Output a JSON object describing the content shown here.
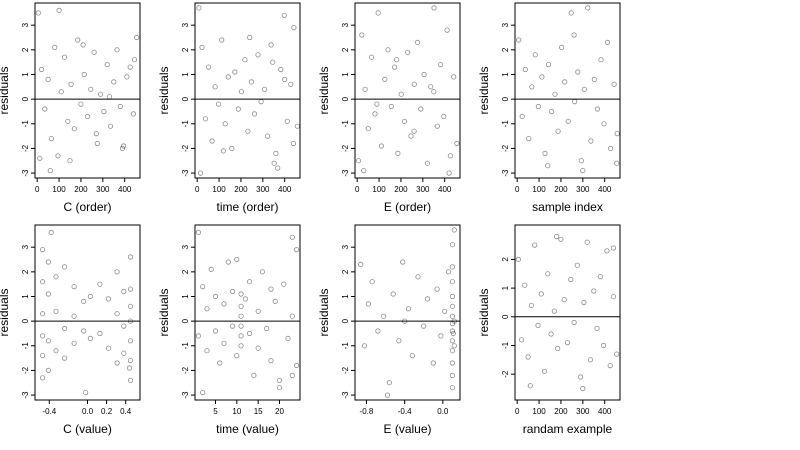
{
  "chart_data": [
    {
      "type": "scatter",
      "xlabel": "C (order)",
      "ylabel": "residuals",
      "xlim": [
        -10,
        470
      ],
      "ylim": [
        -3.2,
        3.9
      ],
      "xticks": [
        0,
        100,
        200,
        300,
        400
      ],
      "xtick_labels": [
        "0",
        "100",
        "200",
        "300",
        "400"
      ],
      "yticks": [
        -3,
        -2,
        -1,
        0,
        1,
        2,
        3
      ],
      "ytick_labels": [
        "-3",
        "-2",
        "-1",
        "0",
        "1",
        "2",
        "3"
      ],
      "reference_line_y": 0,
      "x": [
        5,
        20,
        35,
        50,
        65,
        80,
        95,
        110,
        125,
        140,
        155,
        170,
        185,
        200,
        215,
        230,
        245,
        260,
        275,
        290,
        305,
        320,
        335,
        350,
        365,
        380,
        395,
        410,
        425,
        440,
        455,
        12,
        60,
        100,
        150,
        210,
        270,
        330,
        390,
        445
      ],
      "y": [
        3.5,
        1.2,
        -0.4,
        0.8,
        -1.6,
        2.1,
        -2.3,
        0.3,
        1.7,
        -0.9,
        0.6,
        -1.2,
        2.4,
        -0.2,
        1.0,
        -0.7,
        0.4,
        1.9,
        -1.8,
        0.2,
        -0.5,
        1.4,
        -1.1,
        0.7,
        2.0,
        -0.3,
        -1.9,
        0.9,
        1.3,
        -0.6,
        2.5,
        -2.4,
        -2.9,
        3.6,
        -2.5,
        2.2,
        -1.4,
        0.1,
        -2.0,
        1.6
      ]
    },
    {
      "type": "scatter",
      "xlabel": "time (order)",
      "ylabel": "residuals",
      "xlim": [
        -10,
        470
      ],
      "ylim": [
        -3.2,
        3.9
      ],
      "xticks": [
        0,
        100,
        200,
        300,
        400
      ],
      "xtick_labels": [
        "0",
        "100",
        "200",
        "300",
        "400"
      ],
      "yticks": [
        -3,
        -2,
        -1,
        0,
        1,
        2,
        3
      ],
      "ytick_labels": [
        "-3",
        "-2",
        "-1",
        "0",
        "1",
        "2",
        "3"
      ],
      "reference_line_y": 0,
      "x": [
        8,
        22,
        38,
        52,
        68,
        82,
        98,
        112,
        128,
        142,
        158,
        172,
        188,
        202,
        218,
        232,
        248,
        262,
        278,
        292,
        308,
        322,
        338,
        352,
        368,
        382,
        398,
        412,
        428,
        442,
        458,
        15,
        120,
        240,
        345,
        360,
        400,
        440
      ],
      "y": [
        3.7,
        2.1,
        -0.8,
        1.3,
        -1.7,
        0.5,
        -0.2,
        2.4,
        -1.0,
        0.9,
        -2.0,
        1.1,
        -0.4,
        0.3,
        1.6,
        -1.3,
        0.7,
        -0.6,
        1.8,
        -0.1,
        0.4,
        -1.5,
        2.2,
        -2.6,
        -2.8,
        1.2,
        3.4,
        -0.9,
        0.6,
        2.9,
        -1.1,
        -3.0,
        -2.1,
        2.5,
        1.5,
        -2.2,
        0.8,
        -1.8
      ]
    },
    {
      "type": "scatter",
      "xlabel": "E (order)",
      "ylabel": "residuals",
      "xlim": [
        -10,
        470
      ],
      "ylim": [
        -3.2,
        3.9
      ],
      "xticks": [
        0,
        100,
        200,
        300,
        400
      ],
      "xtick_labels": [
        "0",
        "100",
        "200",
        "300",
        "400"
      ],
      "yticks": [
        -3,
        -2,
        -1,
        0,
        1,
        2,
        3
      ],
      "ytick_labels": [
        "-3",
        "-2",
        "-1",
        "0",
        "1",
        "2",
        "3"
      ],
      "reference_line_y": 0,
      "x": [
        6,
        21,
        36,
        51,
        66,
        81,
        96,
        111,
        126,
        141,
        156,
        171,
        186,
        201,
        216,
        231,
        246,
        261,
        276,
        291,
        306,
        321,
        336,
        351,
        366,
        381,
        396,
        411,
        426,
        441,
        456,
        30,
        90,
        180,
        260,
        350,
        420
      ],
      "y": [
        -2.5,
        2.6,
        0.4,
        -1.2,
        1.7,
        -0.6,
        3.5,
        -1.9,
        0.8,
        2.0,
        -0.3,
        1.3,
        -2.2,
        0.2,
        -0.9,
        1.9,
        -1.5,
        0.6,
        2.3,
        -0.4,
        1.0,
        -2.6,
        0.5,
        3.7,
        -1.1,
        1.4,
        -0.7,
        2.8,
        -2.3,
        0.9,
        -1.8,
        -2.9,
        -0.2,
        1.6,
        -1.3,
        0.3,
        -3.0
      ]
    },
    {
      "type": "scatter",
      "xlabel": "sample index",
      "ylabel": "residuals",
      "xlim": [
        -10,
        470
      ],
      "ylim": [
        -3.2,
        3.9
      ],
      "xticks": [
        0,
        100,
        200,
        300,
        400
      ],
      "xtick_labels": [
        "0",
        "100",
        "200",
        "300",
        "400"
      ],
      "yticks": [
        -3,
        -2,
        -1,
        0,
        1,
        2,
        3
      ],
      "ytick_labels": [
        "-3",
        "-2",
        "-1",
        "0",
        "1",
        "2",
        "3"
      ],
      "reference_line_y": 0,
      "x": [
        7,
        23,
        37,
        53,
        67,
        83,
        97,
        113,
        127,
        143,
        157,
        173,
        187,
        203,
        217,
        233,
        247,
        263,
        277,
        293,
        307,
        323,
        337,
        353,
        367,
        383,
        397,
        413,
        427,
        443,
        457,
        140,
        260,
        300,
        455
      ],
      "y": [
        2.4,
        -0.7,
        1.2,
        -1.6,
        0.5,
        1.8,
        -0.3,
        0.9,
        -2.2,
        1.4,
        -0.5,
        0.2,
        -1.3,
        2.1,
        0.7,
        -0.9,
        3.5,
        -0.1,
        1.1,
        -2.5,
        0.4,
        3.7,
        -1.7,
        0.8,
        -0.4,
        1.6,
        -1.0,
        2.3,
        -2.0,
        0.6,
        -1.4,
        -2.7,
        2.6,
        -2.9,
        -2.6
      ]
    },
    {
      "type": "scatter",
      "xlabel": "C (value)",
      "ylabel": "residuals",
      "xlim": [
        -0.55,
        0.55
      ],
      "ylim": [
        -3.2,
        3.9
      ],
      "xticks": [
        -0.4,
        0.0,
        0.2,
        0.4
      ],
      "xtick_labels": [
        "-0.4",
        "0.0",
        "0.2",
        "0.4"
      ],
      "yticks": [
        -3,
        -2,
        -1,
        0,
        1,
        2,
        3
      ],
      "ytick_labels": [
        "-3",
        "-2",
        "-1",
        "0",
        "1",
        "2",
        "3"
      ],
      "reference_line_y": 0,
      "x": [
        -0.47,
        -0.47,
        -0.47,
        -0.47,
        -0.47,
        -0.47,
        -0.41,
        -0.41,
        -0.41,
        -0.41,
        -0.33,
        -0.33,
        -0.33,
        -0.24,
        -0.24,
        -0.24,
        -0.14,
        -0.14,
        -0.14,
        -0.04,
        -0.04,
        0.03,
        0.03,
        0.13,
        0.13,
        0.22,
        0.22,
        0.31,
        0.31,
        0.31,
        0.38,
        0.38,
        0.38,
        0.45,
        0.45,
        0.45,
        0.45,
        0.45,
        0.45,
        0.45,
        -0.38,
        -0.02,
        0.44
      ],
      "y": [
        2.9,
        1.6,
        0.3,
        -0.6,
        -1.4,
        -2.3,
        2.4,
        1.1,
        -0.8,
        -2.0,
        1.8,
        0.4,
        -1.2,
        2.2,
        -0.3,
        -1.5,
        1.4,
        0.2,
        -0.9,
        0.8,
        -0.4,
        1.0,
        -0.7,
        1.5,
        -0.5,
        0.9,
        -1.1,
        2.0,
        0.3,
        -1.7,
        1.2,
        -0.2,
        -1.3,
        2.6,
        1.3,
        0.6,
        0.0,
        -0.8,
        -1.6,
        -2.4,
        3.6,
        -2.9,
        -1.9
      ]
    },
    {
      "type": "scatter",
      "xlabel": "time (value)",
      "ylabel": "residuals",
      "xlim": [
        0.2,
        24.8
      ],
      "ylim": [
        -3.2,
        3.9
      ],
      "xticks": [
        5,
        10,
        15,
        20
      ],
      "xtick_labels": [
        "5",
        "10",
        "15",
        "20"
      ],
      "yticks": [
        -3,
        -2,
        -1,
        0,
        1,
        2,
        3
      ],
      "ytick_labels": [
        "-3",
        "-2",
        "-1",
        "0",
        "1",
        "2",
        "3"
      ],
      "reference_line_y": 0,
      "x": [
        1,
        1,
        2,
        3,
        3,
        4,
        5,
        5,
        6,
        7,
        7,
        8,
        9,
        9,
        10,
        11,
        11,
        11,
        11,
        11,
        11,
        12,
        13,
        13,
        14,
        15,
        15,
        16,
        17,
        18,
        18,
        19,
        20,
        21,
        22,
        23,
        23,
        24,
        24,
        2,
        10,
        20,
        23
      ],
      "y": [
        3.6,
        -0.6,
        1.4,
        -1.2,
        0.5,
        2.1,
        -0.4,
        1.0,
        -1.7,
        0.7,
        -0.9,
        2.4,
        -0.2,
        1.2,
        -1.4,
        1.1,
        0.6,
        0.2,
        -0.2,
        -0.6,
        -1.0,
        0.9,
        -0.5,
        1.6,
        -2.2,
        0.4,
        -1.1,
        2.0,
        -0.3,
        1.3,
        -1.6,
        0.8,
        -2.4,
        1.5,
        -0.7,
        3.4,
        0.2,
        2.9,
        -1.8,
        -2.9,
        2.5,
        -2.7,
        -2.2
      ]
    },
    {
      "type": "scatter",
      "xlabel": "E (value)",
      "ylabel": "residuals",
      "xlim": [
        -0.92,
        0.18
      ],
      "ylim": [
        -3.2,
        3.9
      ],
      "xticks": [
        -0.8,
        -0.4,
        0.0
      ],
      "xtick_labels": [
        "-0.8",
        "-0.4",
        "0.0"
      ],
      "yticks": [
        -3,
        -2,
        -1,
        0,
        1,
        2,
        3
      ],
      "ytick_labels": [
        "-3",
        "-2",
        "-1",
        "0",
        "1",
        "2",
        "3"
      ],
      "reference_line_y": 0,
      "x": [
        -0.86,
        -0.82,
        -0.78,
        -0.74,
        -0.68,
        -0.62,
        -0.56,
        -0.52,
        -0.46,
        -0.42,
        -0.36,
        -0.32,
        -0.26,
        -0.2,
        -0.16,
        -0.1,
        -0.06,
        -0.02,
        0.02,
        0.06,
        0.1,
        0.1,
        0.1,
        0.1,
        0.1,
        0.1,
        0.1,
        0.1,
        0.1,
        0.1,
        0.1,
        0.1,
        0.1,
        0.12,
        0.12,
        0.12,
        -0.58,
        -0.4,
        0.11
      ],
      "y": [
        2.3,
        -1.0,
        0.7,
        1.6,
        -0.4,
        0.2,
        -2.5,
        1.1,
        -0.8,
        2.4,
        0.5,
        -1.4,
        1.8,
        -0.2,
        0.9,
        -1.7,
        1.3,
        -0.6,
        0.4,
        2.0,
        3.1,
        2.2,
        1.6,
        1.0,
        0.6,
        0.2,
        -0.1,
        -0.4,
        -0.8,
        -1.2,
        -1.7,
        -2.2,
        -2.7,
        3.7,
        0.0,
        -1.0,
        -3.0,
        0.0,
        -0.5
      ]
    },
    {
      "type": "scatter",
      "xlabel": "randam example",
      "ylabel": "residuals",
      "xlim": [
        -10,
        470
      ],
      "ylim": [
        -2.9,
        3.2
      ],
      "xticks": [
        0,
        100,
        200,
        300,
        400
      ],
      "xtick_labels": [
        "0",
        "100",
        "200",
        "300",
        "400"
      ],
      "yticks": [
        -2,
        -1,
        0,
        1,
        2
      ],
      "ytick_labels": [
        "-2",
        "-1",
        "0",
        "1",
        "2"
      ],
      "reference_line_y": 0,
      "x": [
        5,
        20,
        35,
        50,
        65,
        80,
        95,
        110,
        125,
        140,
        155,
        170,
        185,
        200,
        215,
        230,
        245,
        260,
        275,
        290,
        305,
        320,
        335,
        350,
        365,
        380,
        395,
        410,
        425,
        440,
        455,
        60,
        180,
        300,
        440
      ],
      "y": [
        2.0,
        -0.8,
        1.1,
        -1.4,
        0.4,
        2.5,
        -0.3,
        0.8,
        -1.9,
        1.5,
        -0.6,
        0.2,
        -1.1,
        2.7,
        0.6,
        -0.9,
        1.3,
        -0.2,
        1.8,
        -2.1,
        0.5,
        2.6,
        -1.5,
        0.9,
        -0.4,
        1.4,
        -1.0,
        2.3,
        -1.7,
        0.7,
        -1.3,
        -2.4,
        2.8,
        -2.5,
        2.4
      ]
    }
  ]
}
